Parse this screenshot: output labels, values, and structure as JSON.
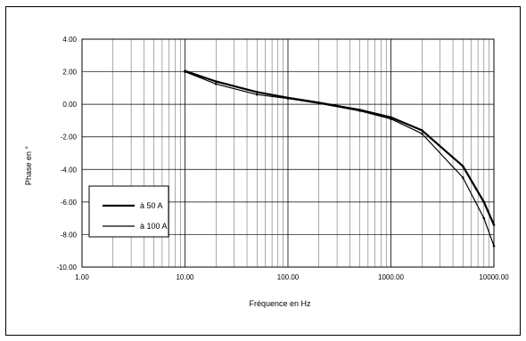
{
  "chart_data": {
    "type": "line",
    "title": "",
    "xlabel": "Fréquence en Hz",
    "ylabel": "Phase en °",
    "xscale": "log",
    "xlim": [
      1,
      10000
    ],
    "ylim": [
      -10,
      4
    ],
    "grid": true,
    "legend_position": "bottom-left",
    "x_tick_labels": [
      "1.00",
      "10.00",
      "100.00",
      "1000.00",
      "10000.00"
    ],
    "y_tick_labels": [
      "4.00",
      "2.00",
      "0.00",
      "-2.00",
      "-4.00",
      "-6.00",
      "-8.00",
      "-10.00"
    ],
    "series": [
      {
        "name": "à 50 A",
        "stroke_width": 2.2,
        "x": [
          10,
          20,
          50,
          100,
          200,
          500,
          1000,
          2000,
          5000,
          8000,
          10000
        ],
        "y": [
          2.05,
          1.4,
          0.75,
          0.4,
          0.1,
          -0.35,
          -0.8,
          -1.6,
          -3.8,
          -6.0,
          -7.4
        ]
      },
      {
        "name": "à 100 A",
        "stroke_width": 1.2,
        "x": [
          10,
          20,
          50,
          100,
          200,
          500,
          1000,
          2000,
          5000,
          8000,
          10000
        ],
        "y": [
          2.0,
          1.25,
          0.6,
          0.35,
          0.05,
          -0.4,
          -0.9,
          -1.8,
          -4.5,
          -7.0,
          -8.7
        ]
      }
    ]
  }
}
